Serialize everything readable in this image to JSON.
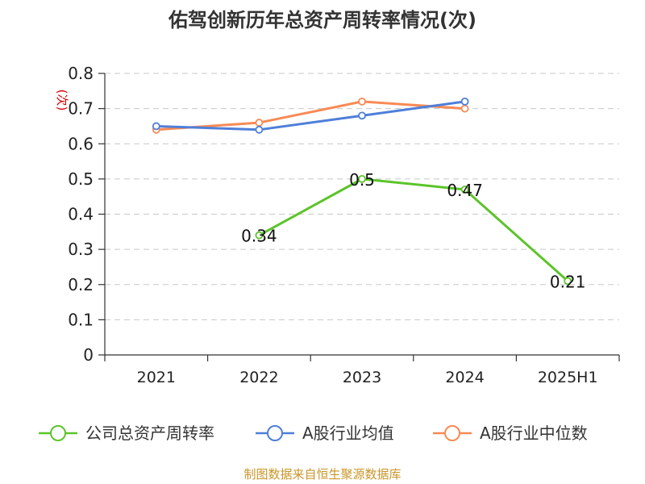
{
  "chart_data": {
    "type": "line",
    "title": "佑驾创新历年总资产周转率情况(次)",
    "ylabel": "(次)",
    "xlabel": "",
    "categories": [
      "2021",
      "2022",
      "2023",
      "2024",
      "2025H1"
    ],
    "ylim": [
      0,
      0.8
    ],
    "yticks": [
      "0",
      "0.1",
      "0.2",
      "0.3",
      "0.4",
      "0.5",
      "0.6",
      "0.7",
      "0.8"
    ],
    "grid": true,
    "legend_position": "bottom",
    "series": [
      {
        "name": "公司总资产周转率",
        "color": "#5cc42a",
        "values": [
          null,
          0.34,
          0.5,
          0.47,
          0.21
        ],
        "labels": [
          null,
          "0.34",
          "0.5",
          "0.47",
          "0.21"
        ]
      },
      {
        "name": "A股行业均值",
        "color": "#4e7fd9",
        "values": [
          0.65,
          0.64,
          0.68,
          0.72,
          null
        ],
        "labels": null
      },
      {
        "name": "A股行业中位数",
        "color": "#f88a55",
        "values": [
          0.64,
          0.66,
          0.72,
          0.7,
          null
        ],
        "labels": null
      }
    ]
  },
  "source": "制图数据来自恒生聚源数据库"
}
